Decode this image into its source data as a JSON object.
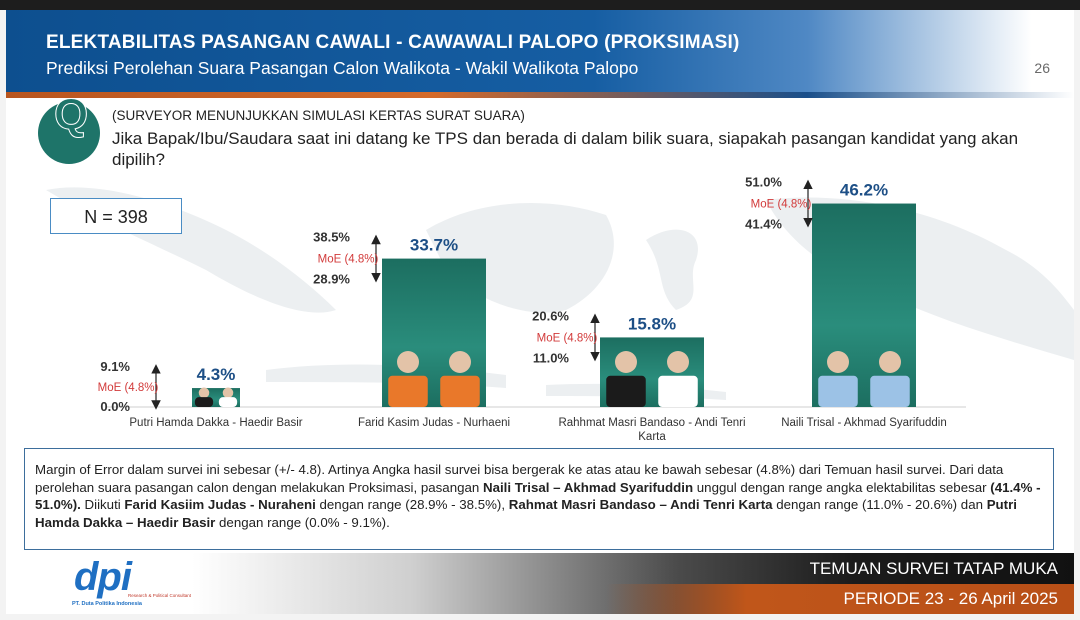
{
  "header": {
    "title": "ELEKTABILITAS PASANGAN CAWALI - CAWAWALI PALOPO (PROKSIMASI)",
    "subtitle": "Prediksi Perolehan Suara Pasangan Calon Walikota - Wakil Walikota Palopo",
    "page_number": "26"
  },
  "question": {
    "icon_letter": "Q",
    "note": "(SURVEYOR MENUNJUKKAN SIMULASI KERTAS SURAT SUARA)",
    "text": "Jika Bapak/Ibu/Saudara saat ini datang ke TPS dan berada di dalam bilik suara, siapakah pasangan kandidat yang akan dipilih?"
  },
  "sample": {
    "label": "N = 398"
  },
  "chart_data": {
    "type": "bar",
    "categories": [
      "Putri Hamda Dakka - Haedir Basir",
      "Farid Kasim Judas - Nurhaeni",
      "Rahhmat Masri Bandaso - Andi Tenri Karta",
      "Naili Trisal - Akhmad Syarifuddin"
    ],
    "values": [
      4.3,
      33.7,
      15.8,
      46.2
    ],
    "value_labels": [
      "4.3%",
      "33.7%",
      "15.8%",
      "46.2%"
    ],
    "range_low": [
      0.0,
      28.9,
      11.0,
      41.4
    ],
    "range_high": [
      9.1,
      38.5,
      20.6,
      51.0
    ],
    "range_low_labels": [
      "0.0%",
      "28.9%",
      "11.0%",
      "41.4%"
    ],
    "range_high_labels": [
      "9.1%",
      "38.5%",
      "20.6%",
      "51.0%"
    ],
    "moe_label": "MoE (4.8%)",
    "ylim": [
      0,
      52
    ],
    "bar_color": "#1f7a6b"
  },
  "note": {
    "p1": "Margin of Error dalam survei ini sebesar (+/- 4.8). Artinya Angka hasil survei bisa bergerak ke atas atau ke bawah sebesar (4.8%) dari Temuan hasil survei. Dari data perolehan suara pasangan calon dengan melakukan Proksimasi, pasangan ",
    "b1": "Naili Trisal – Akhmad Syarifuddin",
    "p2": " unggul dengan range angka elektabilitas sebesar ",
    "b2": "(41.4% - 51.0%).",
    "p3": " Diikuti ",
    "b3": "Farid Kasiim Judas - Nuraheni",
    "p4": " dengan range (28.9% - 38.5%), ",
    "b4": "Rahmat Masri Bandaso – Andi Tenri Karta",
    "p5": "  dengan range (11.0% - 20.6%) dan ",
    "b5": "Putri Hamda Dakka – Haedir Basir",
    "p6": " dengan range (0.0% - 9.1%)."
  },
  "footer": {
    "title": "TEMUAN SURVEI TATAP MUKA",
    "period": "PERIODE 23 - 26 April 2025",
    "logo_text": "dpi",
    "logo_tagline": "Research & Political Consultant",
    "logo_company": "PT. Duta Politika Indonesia"
  }
}
